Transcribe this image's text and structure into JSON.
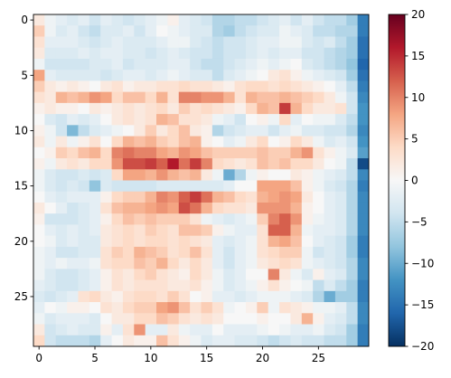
{
  "chart_data": {
    "type": "heatmap",
    "title": "",
    "xlabel": "",
    "ylabel": "",
    "n_rows": 30,
    "n_cols": 30,
    "x_ticks": [
      0,
      5,
      10,
      15,
      20,
      25
    ],
    "y_ticks": [
      0,
      5,
      10,
      15,
      20,
      25
    ],
    "colormap": "RdBu_r",
    "colorbar": {
      "vmin": -20,
      "vmax": 20,
      "ticks": [
        -20,
        -15,
        -10,
        -5,
        0,
        5,
        10,
        15,
        20
      ],
      "colors": [
        "#053061",
        "#2166ac",
        "#4393c3",
        "#92c5de",
        "#d1e5f0",
        "#f7f7f7",
        "#fddbc7",
        "#f4a582",
        "#d6604d",
        "#b2182b",
        "#67001f"
      ]
    },
    "values": [
      [
        2,
        -1,
        -2,
        -3,
        -2,
        -4,
        -2,
        -3,
        -4,
        -3,
        -2,
        -1,
        1,
        -2,
        -3,
        -4,
        -6,
        -6,
        -5,
        -5,
        -4,
        -3,
        -2,
        -4,
        -2,
        -4,
        -5,
        -5,
        -7,
        -14
      ],
      [
        5,
        -1,
        -3,
        -2,
        -4,
        -5,
        -3,
        -3,
        -2,
        -4,
        -2,
        0,
        -1,
        -2,
        -3,
        -3,
        -6,
        -7,
        -5,
        -4,
        -3,
        -3,
        -1,
        -2,
        -3,
        -5,
        -5,
        -6,
        -6,
        -14
      ],
      [
        3,
        -2,
        -2,
        -2,
        -3,
        -4,
        -3,
        -2,
        -3,
        -3,
        -3,
        -2,
        -1,
        -1,
        -3,
        -4,
        -5,
        -4,
        -4,
        -3,
        -2,
        -2,
        -1,
        -1,
        -3,
        -4,
        -3,
        -5,
        -7,
        -15
      ],
      [
        2,
        -3,
        -3,
        -3,
        -2,
        -3,
        -2,
        -2,
        -3,
        -3,
        -4,
        -3,
        -2,
        -3,
        -4,
        -4,
        -5,
        -4,
        -4,
        -3,
        -2,
        -3,
        -2,
        -2,
        -4,
        -4,
        -5,
        -6,
        -7,
        -15
      ],
      [
        -1,
        -4,
        -4,
        -4,
        -4,
        -3,
        -3,
        -2,
        -4,
        -3,
        -3,
        -3,
        -2,
        -2,
        -4,
        -5,
        -5,
        -4,
        -3,
        -2,
        -1,
        -2,
        -1,
        0,
        -3,
        -4,
        -5,
        -6,
        -8,
        -16
      ],
      [
        8,
        -2,
        -3,
        -3,
        -3,
        -3,
        -4,
        -3,
        -2,
        -2,
        -3,
        -2,
        -1,
        -2,
        -3,
        -3,
        -5,
        -3,
        -2,
        -1,
        0,
        2,
        3,
        1,
        -1,
        -2,
        -3,
        -4,
        -7,
        -15
      ],
      [
        5,
        2,
        1,
        2,
        1,
        0,
        2,
        3,
        1,
        2,
        2,
        3,
        3,
        4,
        3,
        3,
        2,
        1,
        3,
        4,
        4,
        3,
        4,
        3,
        2,
        1,
        0,
        -2,
        -5,
        -14
      ],
      [
        3,
        2,
        7,
        6,
        7,
        9,
        8,
        4,
        6,
        6,
        4,
        7,
        3,
        10,
        10,
        9,
        9,
        7,
        3,
        7,
        6,
        6,
        7,
        6,
        5,
        4,
        2,
        -1,
        -4,
        -13
      ],
      [
        1,
        2,
        1,
        1,
        0,
        2,
        1,
        2,
        3,
        2,
        3,
        4,
        2,
        5,
        3,
        4,
        3,
        2,
        1,
        4,
        7,
        6,
        14,
        7,
        4,
        2,
        2,
        3,
        -4,
        -12
      ],
      [
        0,
        -3,
        -4,
        -2,
        -3,
        -2,
        0,
        2,
        3,
        2,
        3,
        7,
        6,
        3,
        3,
        2,
        -1,
        -2,
        -4,
        0,
        1,
        -1,
        4,
        -2,
        0,
        -1,
        -1,
        -3,
        -5,
        -12
      ],
      [
        1,
        -1,
        -4,
        -9,
        -5,
        -3,
        -2,
        -1,
        0,
        2,
        5,
        2,
        4,
        6,
        2,
        1,
        -6,
        -4,
        -3,
        -2,
        -2,
        -4,
        -2,
        -1,
        -3,
        -3,
        -4,
        -4,
        -6,
        -13
      ],
      [
        2,
        -1,
        2,
        -1,
        1,
        3,
        0,
        4,
        7,
        6,
        7,
        5,
        4,
        6,
        7,
        1,
        0,
        -2,
        -1,
        2,
        4,
        0,
        1,
        4,
        2,
        -1,
        -3,
        -2,
        -4,
        -12
      ],
      [
        0,
        1,
        5,
        4,
        6,
        7,
        4,
        10,
        11,
        10,
        10,
        8,
        7,
        9,
        8,
        6,
        5,
        5,
        5,
        5,
        6,
        5,
        5,
        7,
        9,
        3,
        1,
        -1,
        -3,
        -11
      ],
      [
        1,
        -1,
        2,
        3,
        2,
        4,
        4,
        9,
        13,
        13,
        14,
        12,
        16,
        11,
        14,
        10,
        4,
        3,
        2,
        3,
        6,
        5,
        6,
        4,
        4,
        2,
        0,
        -1,
        -5,
        -18
      ],
      [
        -1,
        -3,
        -4,
        -4,
        -3,
        -4,
        -3,
        4,
        8,
        8,
        7,
        9,
        7,
        6,
        7,
        2,
        -1,
        -10,
        -6,
        -1,
        1,
        0,
        0,
        2,
        1,
        -1,
        -2,
        -3,
        -5,
        -13
      ],
      [
        -1,
        -3,
        -4,
        -3,
        -4,
        -8,
        -3,
        -4,
        -4,
        -4,
        -4,
        -3,
        -3,
        -3,
        -3,
        -3,
        -3,
        -2,
        0,
        0,
        8,
        8,
        8,
        6,
        1,
        -1,
        -3,
        -4,
        -6,
        -14
      ],
      [
        0,
        -2,
        -3,
        -2,
        -2,
        -2,
        1,
        4,
        5,
        5,
        7,
        10,
        9,
        12,
        14,
        11,
        7,
        6,
        4,
        3,
        7,
        8,
        9,
        8,
        2,
        0,
        -2,
        -3,
        -6,
        -13
      ],
      [
        2,
        0,
        -2,
        -4,
        -3,
        -2,
        3,
        6,
        7,
        7,
        8,
        9,
        8,
        13,
        11,
        7,
        4,
        3,
        3,
        2,
        9,
        9,
        9,
        7,
        1,
        0,
        -2,
        -3,
        -6,
        -13
      ],
      [
        1,
        -4,
        -4,
        -4,
        -3,
        -2,
        1,
        4,
        6,
        5,
        6,
        5,
        5,
        5,
        3,
        -1,
        -2,
        -3,
        -2,
        -1,
        5,
        10,
        12,
        9,
        1,
        -1,
        -2,
        -3,
        -6,
        -13
      ],
      [
        0,
        -2,
        -3,
        -2,
        -3,
        -2,
        2,
        3,
        4,
        3,
        5,
        4,
        3,
        6,
        6,
        5,
        1,
        -1,
        -2,
        -2,
        3,
        12,
        12,
        7,
        -1,
        -2,
        -2,
        -3,
        -6,
        -13
      ],
      [
        0,
        -1,
        -3,
        -2,
        -3,
        -3,
        2,
        3,
        4,
        3,
        4,
        4,
        3,
        4,
        3,
        2,
        -2,
        -3,
        -2,
        -1,
        3,
        7,
        8,
        6,
        0,
        -2,
        -3,
        -4,
        -7,
        -14
      ],
      [
        -1,
        -2,
        -4,
        -4,
        -3,
        -3,
        3,
        5,
        4,
        7,
        6,
        5,
        3,
        4,
        6,
        3,
        -2,
        -4,
        -2,
        -1,
        3,
        4,
        5,
        5,
        -1,
        -4,
        -3,
        -4,
        -7,
        -14
      ],
      [
        -1,
        -2,
        -1,
        -2,
        -2,
        -1,
        3,
        4,
        4,
        6,
        5,
        7,
        4,
        2,
        4,
        2,
        -2,
        -4,
        -2,
        -1,
        2,
        3,
        4,
        3,
        -1,
        -2,
        -3,
        -4,
        -6,
        -13
      ],
      [
        -1,
        -3,
        -4,
        -4,
        -3,
        -2,
        1,
        3,
        2,
        4,
        5,
        3,
        2,
        1,
        4,
        2,
        -1,
        -3,
        -2,
        0,
        0,
        10,
        2,
        -1,
        -3,
        1,
        -2,
        -3,
        -6,
        -13
      ],
      [
        -2,
        -3,
        -4,
        -4,
        -3,
        -2,
        1,
        3,
        2,
        3,
        3,
        3,
        2,
        2,
        3,
        1,
        -1,
        -3,
        -2,
        -1,
        1,
        3,
        1,
        0,
        -1,
        -5,
        -3,
        -5,
        -7,
        -14
      ],
      [
        -3,
        -4,
        -3,
        -2,
        3,
        4,
        2,
        1,
        3,
        4,
        4,
        3,
        5,
        3,
        0,
        1,
        -2,
        -2,
        -3,
        -2,
        -1,
        -1,
        -1,
        -2,
        -3,
        -6,
        -10,
        -7,
        -7,
        -14
      ],
      [
        -2,
        0,
        -1,
        1,
        1,
        0,
        3,
        2,
        4,
        5,
        5,
        8,
        9,
        6,
        3,
        5,
        3,
        -1,
        0,
        1,
        5,
        -1,
        3,
        2,
        1,
        -1,
        -1,
        -2,
        -5,
        -13
      ],
      [
        -1,
        -3,
        -2,
        -2,
        -2,
        -3,
        0,
        2,
        2,
        4,
        4,
        6,
        5,
        3,
        2,
        3,
        2,
        0,
        0,
        0,
        1,
        0,
        0,
        2,
        7,
        1,
        -2,
        -3,
        -5,
        -13
      ],
      [
        2,
        -4,
        -3,
        -2,
        -3,
        -3,
        1,
        -2,
        3,
        9,
        -2,
        -2,
        2,
        -1,
        -2,
        -2,
        0,
        -2,
        -2,
        -2,
        -1,
        0,
        -1,
        -2,
        -2,
        -1,
        -3,
        -4,
        -7,
        -14
      ],
      [
        4,
        -4,
        -5,
        -5,
        -5,
        -6,
        -2,
        0,
        2,
        1,
        1,
        6,
        3,
        1,
        -1,
        -3,
        -2,
        -2,
        -3,
        -3,
        -4,
        -5,
        -4,
        -3,
        -4,
        -4,
        -5,
        -5,
        -7,
        -14
      ]
    ]
  }
}
